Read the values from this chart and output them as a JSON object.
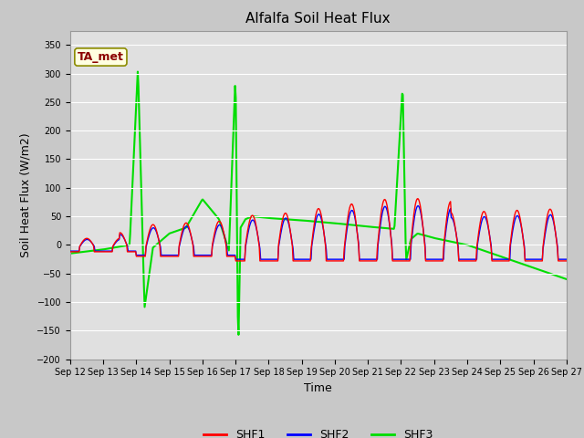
{
  "title": "Alfalfa Soil Heat Flux",
  "ylabel": "Soil Heat Flux (W/m2)",
  "xlabel": "Time",
  "annotation": "TA_met",
  "ylim": [
    -200,
    375
  ],
  "yticks": [
    -200,
    -150,
    -100,
    -50,
    0,
    50,
    100,
    150,
    200,
    250,
    300,
    350
  ],
  "shf1_color": "red",
  "shf2_color": "blue",
  "shf3_color": "#00dd00",
  "fig_facecolor": "#c8c8c8",
  "ax_facecolor": "#e0e0e0",
  "title_fontsize": 11,
  "axis_label_fontsize": 9,
  "tick_fontsize": 7,
  "n_days": 15,
  "start_day": 12,
  "start_month": "Sep"
}
